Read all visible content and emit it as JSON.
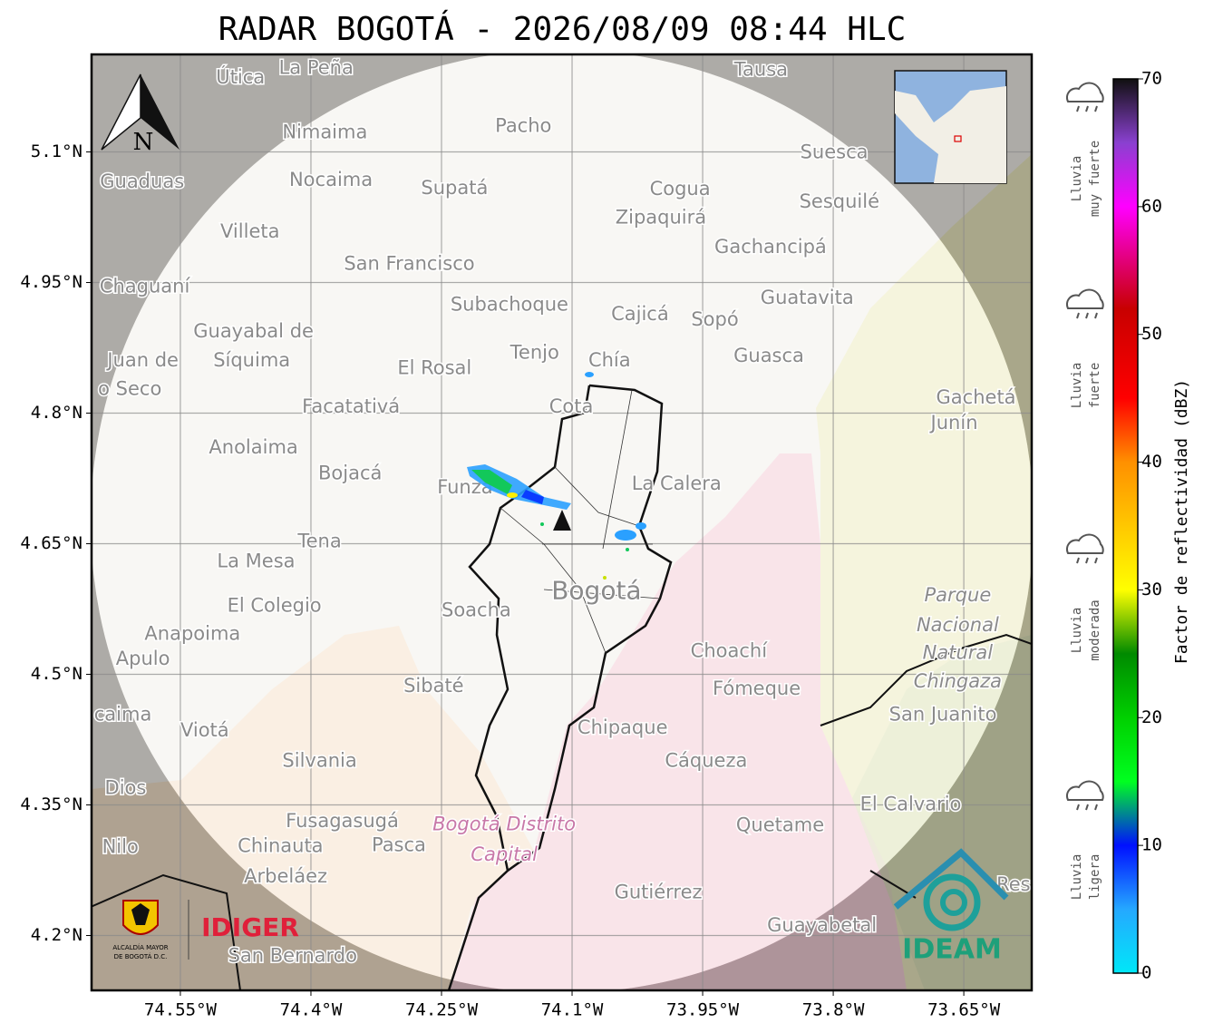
{
  "title": "RADAR BOGOTÁ - 2026/08/09 08:44 HLC",
  "map": {
    "xlim": [
      -74.652,
      -73.572
    ],
    "ylim": [
      4.137,
      5.212
    ],
    "xticks": [
      {
        "value": -74.55,
        "label": "74.55°W"
      },
      {
        "value": -74.4,
        "label": "74.4°W"
      },
      {
        "value": -74.25,
        "label": "74.25°W"
      },
      {
        "value": -74.1,
        "label": "74.1°W"
      },
      {
        "value": -73.95,
        "label": "73.95°W"
      },
      {
        "value": -73.8,
        "label": "73.8°W"
      },
      {
        "value": -73.65,
        "label": "73.65°W"
      }
    ],
    "yticks": [
      {
        "value": 5.1,
        "label": "5.1°N"
      },
      {
        "value": 4.95,
        "label": "4.95°N"
      },
      {
        "value": 4.8,
        "label": "4.8°N"
      },
      {
        "value": 4.65,
        "label": "4.65°N"
      },
      {
        "value": 4.5,
        "label": "4.5°N"
      },
      {
        "value": 4.35,
        "label": "4.35°N"
      },
      {
        "value": 4.2,
        "label": "4.2°N"
      }
    ],
    "grid": true,
    "north": "N"
  },
  "places": [
    {
      "name": "Útica",
      "lon": -74.481,
      "lat": 5.185
    },
    {
      "name": "La Peña",
      "lon": -74.394,
      "lat": 5.196
    },
    {
      "name": "Tausa",
      "lon": -73.883,
      "lat": 5.194
    },
    {
      "name": "Pacho",
      "lon": -74.156,
      "lat": 5.129
    },
    {
      "name": "Nimaima",
      "lon": -74.384,
      "lat": 5.122
    },
    {
      "name": "Guaduas",
      "lon": -74.594,
      "lat": 5.065
    },
    {
      "name": "Nocaima",
      "lon": -74.377,
      "lat": 5.067
    },
    {
      "name": "Supatá",
      "lon": -74.235,
      "lat": 5.058
    },
    {
      "name": "Cogua",
      "lon": -73.976,
      "lat": 5.057
    },
    {
      "name": "Suesca",
      "lon": -73.799,
      "lat": 5.099
    },
    {
      "name": "Sesquilé",
      "lon": -73.793,
      "lat": 5.042
    },
    {
      "name": "Zipaquirá",
      "lon": -73.998,
      "lat": 5.024
    },
    {
      "name": "Villeta",
      "lon": -74.47,
      "lat": 5.008
    },
    {
      "name": "Gachancipá",
      "lon": -73.872,
      "lat": 4.99
    },
    {
      "name": "San Francisco",
      "lon": -74.287,
      "lat": 4.971
    },
    {
      "name": "Chaguaní",
      "lon": -74.591,
      "lat": 4.945
    },
    {
      "name": "Guatavita",
      "lon": -73.83,
      "lat": 4.932
    },
    {
      "name": "Subachoque",
      "lon": -74.172,
      "lat": 4.924
    },
    {
      "name": "Cajicá",
      "lon": -74.022,
      "lat": 4.913
    },
    {
      "name": "Sopó",
      "lon": -73.936,
      "lat": 4.907
    },
    {
      "name": "Guayabal de",
      "lon": -74.466,
      "lat": 4.893
    },
    {
      "name": "Síquima",
      "lon": -74.468,
      "lat": 4.86
    },
    {
      "name": "Juan de",
      "lon": -74.593,
      "lat": 4.86
    },
    {
      "name": "o Seco",
      "lon": -74.608,
      "lat": 4.827
    },
    {
      "name": "Tenjo",
      "lon": -74.143,
      "lat": 4.869
    },
    {
      "name": "Chía",
      "lon": -74.057,
      "lat": 4.86
    },
    {
      "name": "El Rosal",
      "lon": -74.258,
      "lat": 4.851
    },
    {
      "name": "Guasca",
      "lon": -73.874,
      "lat": 4.865
    },
    {
      "name": "Facatativá",
      "lon": -74.354,
      "lat": 4.807
    },
    {
      "name": "Cota",
      "lon": -74.101,
      "lat": 4.807
    },
    {
      "name": "Gachetá",
      "lon": -73.636,
      "lat": 4.817
    },
    {
      "name": "Junín",
      "lon": -73.661,
      "lat": 4.788
    },
    {
      "name": "Anolaima",
      "lon": -74.466,
      "lat": 4.76
    },
    {
      "name": "Bojacá",
      "lon": -74.355,
      "lat": 4.73
    },
    {
      "name": "Funza",
      "lon": -74.223,
      "lat": 4.714
    },
    {
      "name": "La Calera",
      "lon": -73.98,
      "lat": 4.718
    },
    {
      "name": "Tena",
      "lon": -74.39,
      "lat": 4.652
    },
    {
      "name": "La Mesa",
      "lon": -74.463,
      "lat": 4.629
    },
    {
      "name": "Bogotá",
      "lon": -74.072,
      "lat": 4.595
    },
    {
      "name": "Parque",
      "lon": -73.657,
      "lat": 4.59
    },
    {
      "name": "Nacional",
      "lon": -73.657,
      "lat": 4.556
    },
    {
      "name": "Natural",
      "lon": -73.657,
      "lat": 4.524
    },
    {
      "name": "Chingaza",
      "lon": -73.657,
      "lat": 4.491
    },
    {
      "name": "El Colegio",
      "lon": -74.442,
      "lat": 4.578
    },
    {
      "name": "Soacha",
      "lon": -74.21,
      "lat": 4.573
    },
    {
      "name": "Anapoima",
      "lon": -74.536,
      "lat": 4.546
    },
    {
      "name": "Apulo",
      "lon": -74.593,
      "lat": 4.517
    },
    {
      "name": "Choachí",
      "lon": -73.92,
      "lat": 4.526
    },
    {
      "name": "Fómeque",
      "lon": -73.888,
      "lat": 4.483
    },
    {
      "name": "Sibaté",
      "lon": -74.259,
      "lat": 4.486
    },
    {
      "name": "San Juanito",
      "lon": -73.674,
      "lat": 4.453
    },
    {
      "name": "caima",
      "lon": -74.616,
      "lat": 4.453
    },
    {
      "name": "Viotá",
      "lon": -74.522,
      "lat": 4.435
    },
    {
      "name": "Chipaque",
      "lon": -74.042,
      "lat": 4.438
    },
    {
      "name": "Silvania",
      "lon": -74.39,
      "lat": 4.4
    },
    {
      "name": "Cáqueza",
      "lon": -73.946,
      "lat": 4.4
    },
    {
      "name": "Dios",
      "lon": -74.613,
      "lat": 4.369
    },
    {
      "name": "El Calvario",
      "lon": -73.711,
      "lat": 4.35
    },
    {
      "name": "Fusagasugá",
      "lon": -74.364,
      "lat": 4.331
    },
    {
      "name": "Bogotá Distrito",
      "lon": -74.178,
      "lat": 4.327
    },
    {
      "name": "Capital",
      "lon": -74.178,
      "lat": 4.292
    },
    {
      "name": "Quetame",
      "lon": -73.861,
      "lat": 4.326
    },
    {
      "name": "Nilo",
      "lon": -74.619,
      "lat": 4.301
    },
    {
      "name": "Chinauta",
      "lon": -74.435,
      "lat": 4.302
    },
    {
      "name": "Pasca",
      "lon": -74.299,
      "lat": 4.303
    },
    {
      "name": "Arbeláez",
      "lon": -74.429,
      "lat": 4.267
    },
    {
      "name": "Gutiérrez",
      "lon": -74.001,
      "lat": 4.249
    },
    {
      "name": "Guayabetal",
      "lon": -73.813,
      "lat": 4.211
    },
    {
      "name": "San Bernardo",
      "lon": -74.421,
      "lat": 4.176
    },
    {
      "name": "Res",
      "lon": -73.593,
      "lat": 4.258
    }
  ],
  "colorbar": {
    "min": 0,
    "max": 70,
    "ticks": [
      0,
      10,
      20,
      30,
      40,
      50,
      60,
      70
    ],
    "label": "Factor de reflectividad (dBZ)",
    "stops": [
      [
        0,
        "#00e8f8"
      ],
      [
        5,
        "#25a8ff"
      ],
      [
        10,
        "#0010ff"
      ],
      [
        15,
        "#00ff20"
      ],
      [
        20,
        "#00d000"
      ],
      [
        25,
        "#008a00"
      ],
      [
        30,
        "#ffff00"
      ],
      [
        40,
        "#ff9000"
      ],
      [
        45,
        "#ff0000"
      ],
      [
        52,
        "#c80000"
      ],
      [
        60,
        "#ff00ff"
      ],
      [
        65,
        "#8a40d0"
      ],
      [
        70,
        "#101010"
      ]
    ]
  },
  "rain_levels": [
    {
      "lines": [
        "Lluvia",
        "muy fuerte"
      ]
    },
    {
      "lines": [
        "Lluvia",
        "fuerte"
      ]
    },
    {
      "lines": [
        "Lluvia",
        "moderada"
      ]
    },
    {
      "lines": [
        "Lluvia",
        "ligera"
      ]
    }
  ],
  "logos": {
    "idiger": "IDIGER",
    "alcaldia": [
      "ALCALDÍA MAYOR",
      "DE BOGOTÁ D.C."
    ],
    "ideam": "IDEAM"
  }
}
